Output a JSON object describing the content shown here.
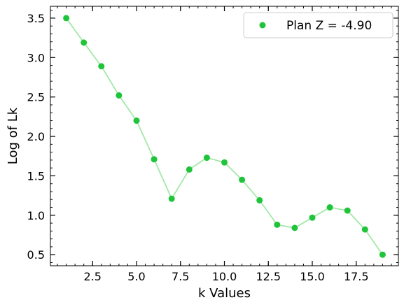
{
  "chart_data": {
    "type": "line",
    "title": "",
    "xlabel": "k Values",
    "ylabel": "Log of Lk",
    "xlim": [
      0.1,
      19.9
    ],
    "ylim": [
      0.36,
      3.65
    ],
    "x_ticks": [
      2.5,
      5.0,
      7.5,
      10.0,
      12.5,
      15.0,
      17.5
    ],
    "x_tick_labels": [
      "2.5",
      "5.0",
      "7.5",
      "10.0",
      "12.5",
      "15.0",
      "17.5"
    ],
    "y_ticks": [
      0.5,
      1.0,
      1.5,
      2.0,
      2.5,
      3.0,
      3.5
    ],
    "y_tick_labels": [
      "0.5",
      "1.0",
      "1.5",
      "2.0",
      "2.5",
      "3.0",
      "3.5"
    ],
    "x_minor_step": 0.5,
    "y_minor_step": 0.1,
    "grid": false,
    "legend_position": "top-right",
    "series": [
      {
        "name": "Plan Z = -4.90",
        "marker_color": "#1fc43a",
        "line_color": "#a3e8a8",
        "x": [
          1,
          2,
          3,
          4,
          5,
          6,
          7,
          8,
          9,
          10,
          11,
          12,
          13,
          14,
          15,
          16,
          17,
          18,
          19
        ],
        "y": [
          3.5,
          3.19,
          2.89,
          2.52,
          2.2,
          1.71,
          1.21,
          1.58,
          1.73,
          1.67,
          1.45,
          1.19,
          0.88,
          0.84,
          0.97,
          1.1,
          1.06,
          0.82,
          0.5
        ]
      }
    ]
  }
}
